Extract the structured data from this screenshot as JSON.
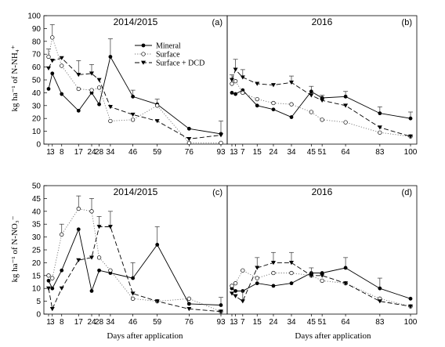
{
  "figure": {
    "xlabel": "Days after application",
    "legend": [
      {
        "name": "Mineral",
        "style": "solid",
        "marker": "filled-circle"
      },
      {
        "name": "Surface",
        "style": "dotted",
        "marker": "open-circle"
      },
      {
        "name": "Surface + DCD",
        "style": "dashed",
        "marker": "filled-triangle-down"
      }
    ]
  },
  "chart_data": [
    {
      "type": "line",
      "panel": "a",
      "title": "2014/2015",
      "tag": "(a)",
      "ylabel": "kg ha⁻¹ of N-NH₄⁺",
      "ylim": [
        0,
        100
      ],
      "yticks": [
        0,
        10,
        20,
        30,
        40,
        50,
        60,
        70,
        80,
        90,
        100
      ],
      "xticks": [
        1,
        3,
        8,
        17,
        24,
        28,
        34,
        46,
        59,
        76,
        93
      ],
      "xtick_labels": [
        "1",
        "3",
        "8",
        "17",
        "24",
        "28",
        "34",
        "46",
        "59",
        "76",
        "93"
      ],
      "series": [
        {
          "name": "Mineral",
          "x": [
            1,
            3,
            8,
            17,
            24,
            28,
            34,
            46,
            59,
            76,
            93
          ],
          "y": [
            43,
            55,
            39,
            26,
            40,
            31,
            68,
            37,
            31,
            12,
            8
          ],
          "err": [
            0,
            0,
            0,
            0,
            0,
            0,
            14,
            5,
            0,
            0,
            0
          ]
        },
        {
          "name": "Surface",
          "x": [
            1,
            3,
            8,
            17,
            24,
            28,
            34,
            46,
            59,
            76,
            93
          ],
          "y": [
            68,
            83,
            61,
            43,
            42,
            44,
            18,
            19,
            30,
            1,
            1
          ],
          "err": [
            6,
            10,
            0,
            0,
            0,
            0,
            0,
            0,
            5,
            0,
            0
          ]
        },
        {
          "name": "Surface + DCD",
          "x": [
            1,
            3,
            8,
            17,
            24,
            28,
            34,
            46,
            59,
            76,
            93
          ],
          "y": [
            59,
            65,
            67,
            54,
            55,
            50,
            29,
            23,
            18,
            4,
            7
          ],
          "err": [
            0,
            0,
            0,
            11,
            7,
            0,
            0,
            0,
            0,
            0,
            11
          ]
        }
      ]
    },
    {
      "type": "line",
      "panel": "b",
      "title": "2016",
      "tag": "(b)",
      "ylim": [
        0,
        100
      ],
      "xticks": [
        1,
        3,
        7,
        15,
        24,
        34,
        45,
        51,
        64,
        83,
        100
      ],
      "xtick_labels": [
        "1",
        "3",
        "7",
        "15",
        "24",
        "34",
        "45",
        "51",
        "64",
        "83",
        "100"
      ],
      "series": [
        {
          "name": "Mineral",
          "x": [
            1,
            3,
            7,
            15,
            24,
            34,
            45,
            51,
            64,
            83,
            100
          ],
          "y": [
            40,
            39,
            42,
            30,
            27,
            21,
            41,
            36,
            37,
            24,
            20
          ],
          "err": [
            0,
            0,
            0,
            0,
            0,
            0,
            4,
            0,
            4,
            5,
            5
          ]
        },
        {
          "name": "Surface",
          "x": [
            1,
            3,
            7,
            15,
            24,
            34,
            45,
            51,
            64,
            83,
            100
          ],
          "y": [
            47,
            49,
            40,
            35,
            32,
            31,
            25,
            19,
            17,
            9,
            6
          ],
          "err": [
            0,
            0,
            0,
            0,
            0,
            0,
            0,
            0,
            0,
            0,
            0
          ]
        },
        {
          "name": "Surface + DCD",
          "x": [
            1,
            3,
            7,
            15,
            24,
            34,
            45,
            51,
            64,
            83,
            100
          ],
          "y": [
            50,
            58,
            52,
            47,
            46,
            48,
            38,
            34,
            30,
            13,
            6
          ],
          "err": [
            4,
            8,
            6,
            0,
            0,
            5,
            0,
            4,
            0,
            0,
            0
          ]
        }
      ]
    },
    {
      "type": "line",
      "panel": "c",
      "title": "2014/2015",
      "tag": "(c)",
      "ylabel": "kg ha⁻¹ of N-NO₃⁻",
      "ylim": [
        0,
        50
      ],
      "yticks": [
        0,
        5,
        10,
        15,
        20,
        25,
        30,
        35,
        40,
        45,
        50
      ],
      "xticks": [
        1,
        3,
        8,
        17,
        24,
        28,
        34,
        46,
        59,
        76,
        93
      ],
      "xtick_labels": [
        "1",
        "3",
        "8",
        "17",
        "24",
        "28",
        "34",
        "46",
        "59",
        "76",
        "93"
      ],
      "series": [
        {
          "name": "Mineral",
          "x": [
            1,
            3,
            8,
            17,
            24,
            28,
            34,
            46,
            59,
            76,
            93
          ],
          "y": [
            13,
            10,
            17,
            33,
            9,
            17,
            16,
            14,
            27,
            4,
            3.5
          ],
          "err": [
            0,
            0,
            0,
            0,
            0,
            0,
            0,
            6,
            7,
            0,
            3
          ]
        },
        {
          "name": "Surface",
          "x": [
            1,
            3,
            8,
            17,
            24,
            28,
            34,
            46,
            59,
            76,
            93
          ],
          "y": [
            15,
            14,
            31,
            41,
            40,
            22,
            17,
            6,
            5,
            6,
            1
          ],
          "err": [
            0,
            0,
            4,
            5,
            5,
            0,
            0,
            0,
            0,
            0,
            0
          ]
        },
        {
          "name": "Surface + DCD",
          "x": [
            1,
            3,
            8,
            17,
            24,
            28,
            34,
            46,
            59,
            76,
            93
          ],
          "y": [
            10,
            2,
            10,
            21,
            22,
            34,
            34,
            8,
            5,
            2,
            1
          ],
          "err": [
            0,
            0,
            0,
            0,
            0,
            4,
            6,
            0,
            0,
            0,
            0
          ]
        }
      ]
    },
    {
      "type": "line",
      "panel": "d",
      "title": "2016",
      "tag": "(d)",
      "ylim": [
        0,
        50
      ],
      "xticks": [
        1,
        3,
        7,
        15,
        24,
        34,
        45,
        51,
        64,
        83,
        100
      ],
      "xtick_labels": [
        "1",
        "3",
        "7",
        "15",
        "24",
        "34",
        "45",
        "51",
        "64",
        "83",
        "100"
      ],
      "series": [
        {
          "name": "Mineral",
          "x": [
            1,
            3,
            7,
            15,
            24,
            34,
            45,
            51,
            64,
            83,
            100
          ],
          "y": [
            10,
            9,
            9,
            12,
            11,
            12,
            16,
            16,
            18,
            10,
            6
          ],
          "err": [
            0,
            0,
            0,
            0,
            0,
            0,
            0,
            0,
            4,
            4,
            0
          ]
        },
        {
          "name": "Surface",
          "x": [
            1,
            3,
            7,
            15,
            24,
            34,
            45,
            51,
            64,
            83,
            100
          ],
          "y": [
            11,
            12,
            17,
            14,
            16,
            16,
            15,
            13,
            12,
            6,
            3
          ],
          "err": [
            0,
            0,
            0,
            0,
            0,
            0,
            0,
            0,
            0,
            0,
            0
          ]
        },
        {
          "name": "Surface + DCD",
          "x": [
            1,
            3,
            7,
            15,
            24,
            34,
            45,
            51,
            64,
            83,
            100
          ],
          "y": [
            8,
            7,
            5,
            18,
            20,
            20,
            15,
            15,
            12,
            5,
            3
          ],
          "err": [
            0,
            0,
            4,
            4,
            4,
            4,
            3,
            0,
            0,
            0,
            0
          ]
        }
      ]
    }
  ]
}
